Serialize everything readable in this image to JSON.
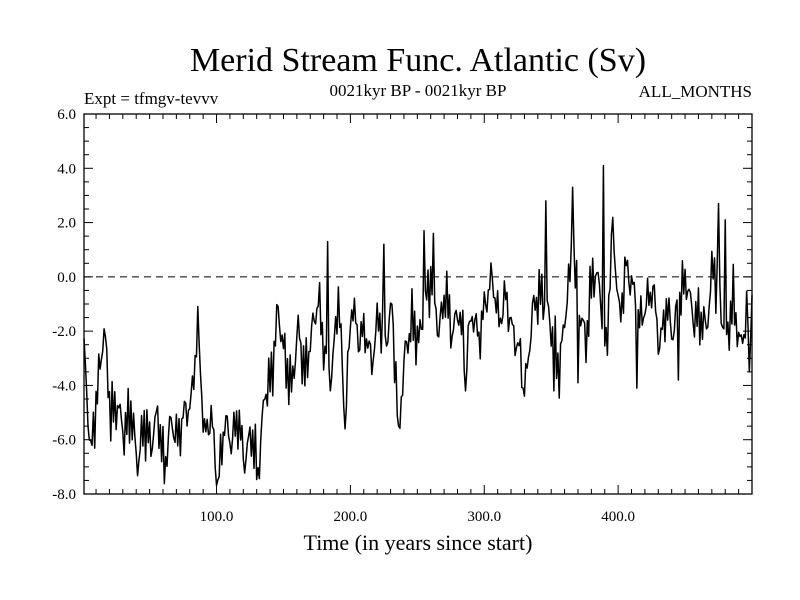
{
  "chart_data": {
    "type": "line",
    "title": "Merid Stream Func. Atlantic (Sv)",
    "subtitle_left": "Expt = tfmgv-tevvv",
    "subtitle_center": "0021kyr BP - 0021kyr BP",
    "subtitle_right": "ALL_MONTHS",
    "xlabel": "Time (in years since start)",
    "ylabel": "",
    "xlim": [
      1,
      500
    ],
    "ylim": [
      -8.0,
      6.0
    ],
    "xticks": [
      100,
      200,
      300,
      400
    ],
    "xtick_labels": [
      "100.0",
      "200.0",
      "300.0",
      "400.0"
    ],
    "yticks": [
      -8,
      -6,
      -4,
      -2,
      0,
      2,
      4,
      6
    ],
    "ytick_labels": [
      "-8.0",
      "-6.0",
      "-4.0",
      "-2.0",
      "0.0",
      "2.0",
      "4.0",
      "6.0"
    ],
    "reference_line": {
      "y": 0.0,
      "style": "dashed"
    },
    "grid": false,
    "series": [
      {
        "x": [
          1,
          6,
          11,
          16,
          21,
          26,
          31,
          36,
          41,
          46,
          51,
          56,
          61,
          66,
          71,
          76,
          81,
          86,
          91,
          96,
          101,
          106,
          111,
          116,
          121,
          126,
          131,
          136,
          141,
          146,
          151,
          156,
          161,
          166,
          171,
          176,
          181,
          186,
          191,
          196,
          201,
          206,
          211,
          216,
          221,
          226,
          231,
          236,
          241,
          246,
          251,
          256,
          261,
          266,
          271,
          276,
          281,
          286,
          291,
          296,
          301,
          306,
          311,
          316,
          321,
          326,
          331,
          336,
          341,
          346,
          351,
          356,
          361,
          366,
          371,
          376,
          381,
          386,
          391,
          396,
          401,
          406,
          411,
          416,
          421,
          426,
          431,
          436,
          441,
          446,
          451,
          456,
          461,
          466,
          471,
          476,
          481,
          486,
          491,
          496,
          500
        ],
        "y": [
          -2.6,
          -6.6,
          -4.2,
          -1.9,
          -5.1,
          -4.7,
          -5.8,
          -4.9,
          -6.9,
          -5.4,
          -6.2,
          -5.0,
          -7.1,
          -5.3,
          -6.0,
          -5.0,
          -4.7,
          -1.8,
          -5.9,
          -5.1,
          -7.7,
          -5.3,
          -6.1,
          -5.2,
          -6.8,
          -5.7,
          -7.3,
          -4.3,
          -3.7,
          -1.2,
          -3.0,
          -4.1,
          -1.9,
          -3.6,
          -2.1,
          -0.8,
          -2.9,
          -3.7,
          -0.6,
          -5.3,
          -0.9,
          -2.3,
          -2.0,
          -3.2,
          -1.4,
          -2.5,
          -1.1,
          -5.5,
          -2.8,
          -1.6,
          -2.4,
          -1.0,
          0.1,
          -2.1,
          -0.5,
          -2.1,
          -1.2,
          -3.0,
          -1.3,
          -2.3,
          -0.9,
          0.0,
          -1.7,
          -0.7,
          -2.0,
          -2.7,
          -4.0,
          -1.3,
          -0.6,
          -1.0,
          -2.1,
          -3.5,
          -1.1,
          0.9,
          -1.2,
          -2.4,
          0.2,
          -0.3,
          -2.8,
          1.9,
          -1.6,
          0.4,
          -0.4,
          -1.7,
          -1.0,
          -0.4,
          -2.6,
          -1.1,
          -2.1,
          -0.7,
          -0.1,
          -1.5,
          -1.5,
          -1.9,
          0.5,
          -1.0,
          -2.3,
          -0.8,
          -2.6,
          -1.5,
          -1.0
        ],
        "spikes": [
          {
            "x": 183,
            "y": 1.3
          },
          {
            "x": 196,
            "y": -5.6
          },
          {
            "x": 225,
            "y": 1.2
          },
          {
            "x": 236,
            "y": -5.5
          },
          {
            "x": 255,
            "y": 1.7
          },
          {
            "x": 262,
            "y": 1.6
          },
          {
            "x": 286,
            "y": -4.2
          },
          {
            "x": 329,
            "y": -4.1
          },
          {
            "x": 346,
            "y": 2.8
          },
          {
            "x": 352,
            "y": -4.2
          },
          {
            "x": 366,
            "y": 3.3
          },
          {
            "x": 370,
            "y": -3.9
          },
          {
            "x": 389,
            "y": 4.1
          },
          {
            "x": 414,
            "y": -4.1
          },
          {
            "x": 445,
            "y": -3.8
          },
          {
            "x": 475,
            "y": 2.7
          },
          {
            "x": 480,
            "y": 2.1
          },
          {
            "x": 498,
            "y": -3.5
          }
        ]
      }
    ]
  }
}
